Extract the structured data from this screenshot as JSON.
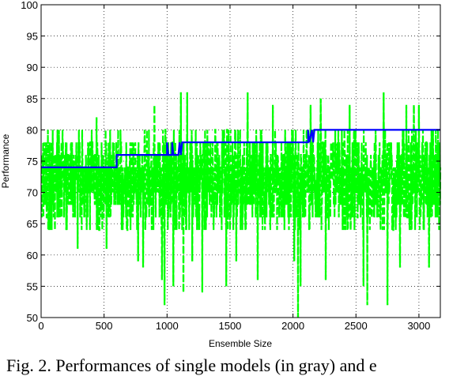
{
  "caption": "Fig. 2. Performances of single models (in gray) and e",
  "chart_data": {
    "type": "line",
    "xlabel": "Ensemble Size",
    "ylabel": "Performance",
    "xlim": [
      0,
      3170
    ],
    "ylim": [
      50,
      100
    ],
    "xticks": [
      0,
      500,
      1000,
      1500,
      2000,
      2500,
      3000
    ],
    "yticks": [
      50,
      55,
      60,
      65,
      70,
      75,
      80,
      85,
      90,
      95,
      100
    ],
    "grid": true,
    "series": [
      {
        "color": "#00ff00",
        "style": "dashed",
        "n_points": 3170,
        "band": [
          64,
          80
        ],
        "typical_level": 72,
        "spikes": [
          {
            "x": 70,
            "y": 64
          },
          {
            "x": 130,
            "y": 80
          },
          {
            "x": 200,
            "y": 64
          },
          {
            "x": 290,
            "y": 61
          },
          {
            "x": 440,
            "y": 82
          },
          {
            "x": 520,
            "y": 61
          },
          {
            "x": 640,
            "y": 64
          },
          {
            "x": 770,
            "y": 59
          },
          {
            "x": 810,
            "y": 58
          },
          {
            "x": 900,
            "y": 84
          },
          {
            "x": 960,
            "y": 56
          },
          {
            "x": 980,
            "y": 52
          },
          {
            "x": 1050,
            "y": 55
          },
          {
            "x": 1110,
            "y": 86
          },
          {
            "x": 1130,
            "y": 54
          },
          {
            "x": 1160,
            "y": 86
          },
          {
            "x": 1200,
            "y": 59
          },
          {
            "x": 1280,
            "y": 54
          },
          {
            "x": 1470,
            "y": 55
          },
          {
            "x": 1550,
            "y": 59
          },
          {
            "x": 1640,
            "y": 86
          },
          {
            "x": 1720,
            "y": 56
          },
          {
            "x": 1840,
            "y": 84
          },
          {
            "x": 2010,
            "y": 59
          },
          {
            "x": 2040,
            "y": 50
          },
          {
            "x": 2060,
            "y": 55
          },
          {
            "x": 2140,
            "y": 84
          },
          {
            "x": 2220,
            "y": 85
          },
          {
            "x": 2260,
            "y": 56
          },
          {
            "x": 2450,
            "y": 84
          },
          {
            "x": 2560,
            "y": 55
          },
          {
            "x": 2590,
            "y": 52
          },
          {
            "x": 2720,
            "y": 86
          },
          {
            "x": 2750,
            "y": 52
          },
          {
            "x": 2850,
            "y": 58
          },
          {
            "x": 2900,
            "y": 84
          },
          {
            "x": 2960,
            "y": 84
          },
          {
            "x": 3000,
            "y": 84
          },
          {
            "x": 3080,
            "y": 58
          }
        ]
      },
      {
        "color": "#0000ff",
        "style": "solid",
        "steps": [
          {
            "x": 0,
            "y": 74
          },
          {
            "x": 600,
            "y": 74
          },
          {
            "x": 600,
            "y": 76
          },
          {
            "x": 1000,
            "y": 76
          },
          {
            "x": 1000,
            "y": 78
          },
          {
            "x": 1010,
            "y": 76
          },
          {
            "x": 1040,
            "y": 76
          },
          {
            "x": 1040,
            "y": 78
          },
          {
            "x": 1050,
            "y": 76
          },
          {
            "x": 1090,
            "y": 76
          },
          {
            "x": 1100,
            "y": 78
          },
          {
            "x": 1110,
            "y": 76
          },
          {
            "x": 1120,
            "y": 78
          },
          {
            "x": 2120,
            "y": 78
          },
          {
            "x": 2120,
            "y": 80
          },
          {
            "x": 2130,
            "y": 78
          },
          {
            "x": 2150,
            "y": 80
          },
          {
            "x": 2160,
            "y": 78
          },
          {
            "x": 2170,
            "y": 80
          },
          {
            "x": 3170,
            "y": 80
          }
        ]
      }
    ]
  }
}
